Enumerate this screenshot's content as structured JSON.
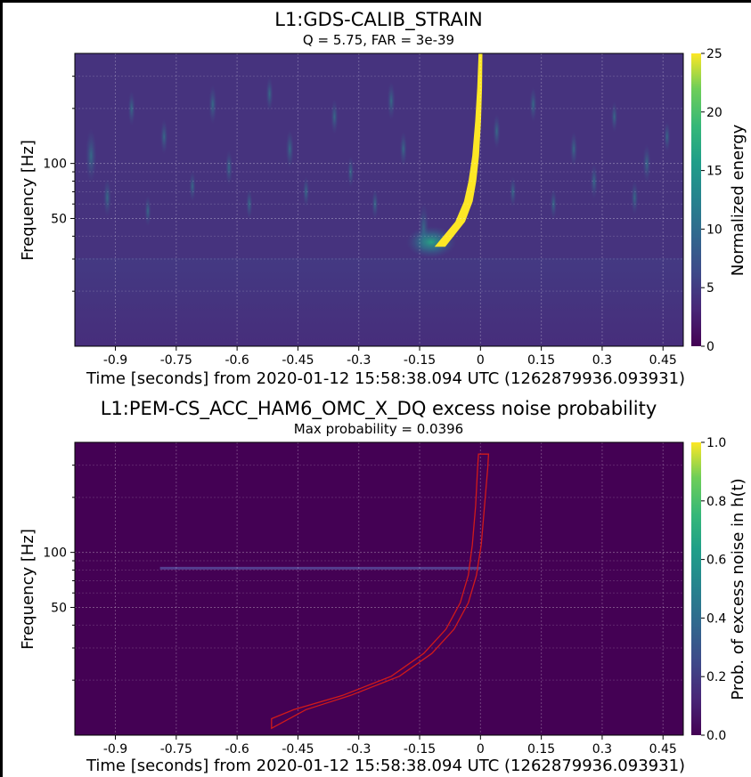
{
  "colors": {
    "viridis_low": "#440154",
    "viridis_mid": "#21918c",
    "viridis_high": "#fde725",
    "mask_outline": "#d11a1a",
    "grid": "#ffffff"
  },
  "chart_data": [
    {
      "type": "heatmap",
      "title": "L1:GDS-CALIB_STRAIN",
      "subtitle": "Q = 5.75, FAR = 3e-39",
      "xlabel": "Time [seconds] from 2020-01-12 15:58:38.094 UTC (1262879936.093931)",
      "ylabel": "Frequency [Hz]",
      "x_ticks": [
        -0.9,
        -0.75,
        -0.6,
        -0.45,
        -0.3,
        -0.15,
        0,
        0.15,
        0.3,
        0.45
      ],
      "x_tick_labels": [
        "-0.9",
        "-0.75",
        "-0.6",
        "-0.45",
        "-0.3",
        "-0.15",
        "0",
        "0.15",
        "0.3",
        "0.45"
      ],
      "xlim": [
        -1.0,
        0.5
      ],
      "y_scale": "log",
      "y_ticks": [
        50,
        100
      ],
      "y_tick_labels": [
        "50",
        "100"
      ],
      "ylim": [
        10,
        400
      ],
      "grid": true,
      "colorbar": {
        "label": "Normalized energy",
        "range": [
          0,
          25
        ],
        "ticks": [
          0,
          5,
          10,
          15,
          20,
          25
        ],
        "tick_labels": [
          "0",
          "5",
          "10",
          "15",
          "20",
          "25"
        ],
        "colormap": "viridis"
      },
      "chirp_track": [
        {
          "t": -0.1,
          "f": 35
        },
        {
          "t": -0.05,
          "f": 48
        },
        {
          "t": -0.03,
          "f": 62
        },
        {
          "t": -0.02,
          "f": 80
        },
        {
          "t": -0.012,
          "f": 110
        },
        {
          "t": -0.006,
          "f": 170
        },
        {
          "t": -0.002,
          "f": 260
        },
        {
          "t": 0.0,
          "f": 400
        }
      ],
      "peak_energy": 25
    },
    {
      "type": "heatmap",
      "title": "L1:PEM-CS_ACC_HAM6_OMC_X_DQ excess noise probability",
      "subtitle": "Max probability = 0.0396",
      "xlabel": "Time [seconds] from 2020-01-12 15:58:38.094 UTC (1262879936.093931)",
      "ylabel": "Frequency [Hz]",
      "x_ticks": [
        -0.9,
        -0.75,
        -0.6,
        -0.45,
        -0.3,
        -0.15,
        0,
        0.15,
        0.3,
        0.45
      ],
      "x_tick_labels": [
        "-0.9",
        "-0.75",
        "-0.6",
        "-0.45",
        "-0.3",
        "-0.15",
        "0",
        "0.15",
        "0.3",
        "0.45"
      ],
      "xlim": [
        -1.0,
        0.5
      ],
      "y_scale": "log",
      "y_ticks": [
        50,
        100
      ],
      "y_tick_labels": [
        "50",
        "100"
      ],
      "ylim": [
        10,
        400
      ],
      "grid": true,
      "colorbar": {
        "label": "Prob. of excess noise in h(t)",
        "range": [
          0,
          1
        ],
        "ticks": [
          0,
          0.2,
          0.4,
          0.6,
          0.8,
          1.0
        ],
        "tick_labels": [
          "0.0",
          "0.2",
          "0.4",
          "0.6",
          "0.8",
          "1.0"
        ],
        "colormap": "viridis"
      },
      "noise_line": {
        "f": 82,
        "t_start": -0.79,
        "t_end": 0.0
      },
      "max_probability": 0.0396
    }
  ]
}
